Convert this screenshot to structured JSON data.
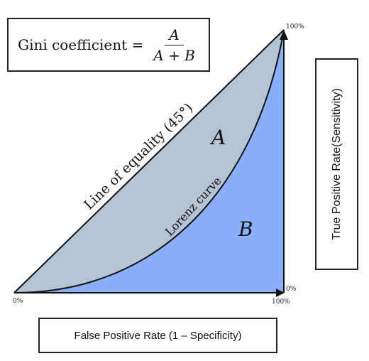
{
  "formula": {
    "label": "Gini coefficient =",
    "numerator": "A",
    "denominator": "A + B"
  },
  "axes": {
    "xlabel": "False Positive Rate (1 – Specificity)",
    "ylabel": "True Positive Rate(Sensitivity)"
  },
  "ticks": {
    "origin": "0%",
    "x_end": "100%",
    "y_end": "100%",
    "corner_zero": "0%"
  },
  "regions": {
    "a_label": "A",
    "b_label": "B"
  },
  "curves": {
    "equality_line_label": "Line of equality (45°)",
    "lorenz_label": "Lorenz curve"
  },
  "colors": {
    "region_a": "#b6c3d2",
    "region_b": "#8aaef8",
    "stroke": "#111111"
  }
}
